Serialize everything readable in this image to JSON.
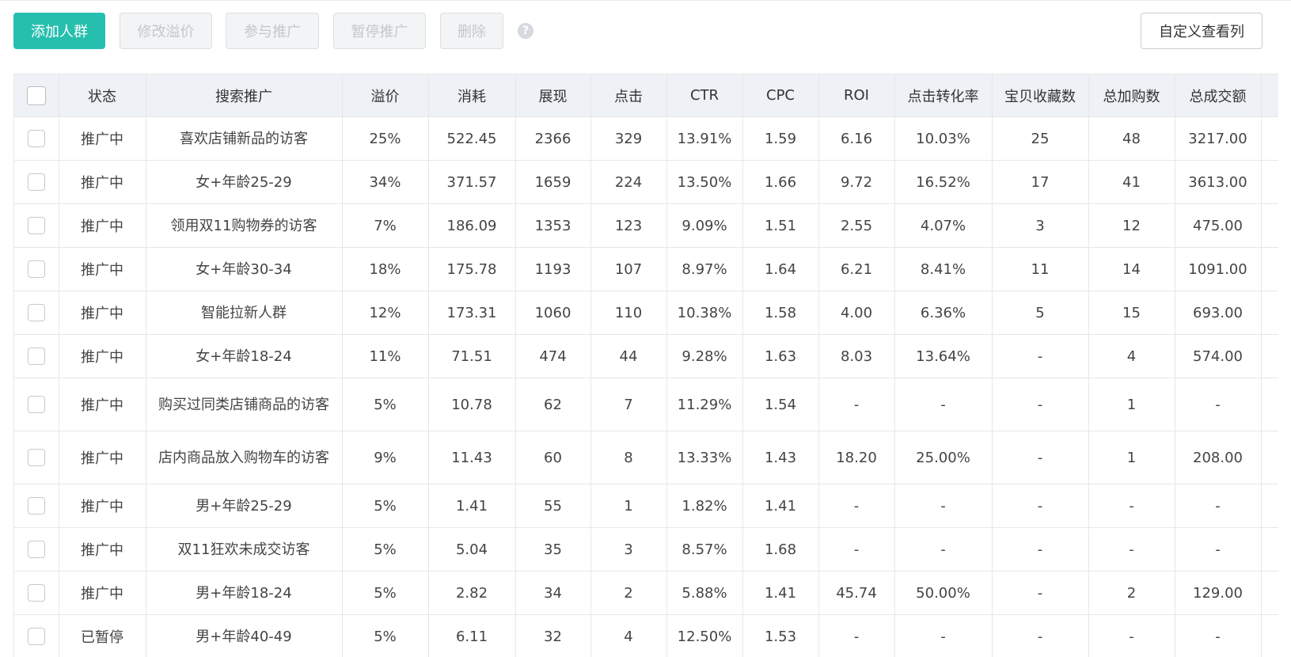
{
  "toolbar": {
    "add_label": "添加人群",
    "edit_premium_label": "修改溢价",
    "join_label": "参与推广",
    "pause_label": "暂停推广",
    "delete_label": "删除",
    "help_glyph": "?",
    "custom_columns_label": "自定义查看列"
  },
  "table": {
    "columns": [
      "状态",
      "搜索推广",
      "溢价",
      "消耗",
      "展现",
      "点击",
      "CTR",
      "CPC",
      "ROI",
      "点击转化率",
      "宝贝收藏数",
      "总加购数",
      "总成交额"
    ],
    "rows": [
      {
        "status": "推广中",
        "name": "喜欢店铺新品的访客",
        "premium": "25%",
        "cost": "522.45",
        "impressions": "2366",
        "clicks": "329",
        "ctr": "13.91%",
        "cpc": "1.59",
        "roi": "6.16",
        "cvr": "10.03%",
        "favorites": "25",
        "carts": "48",
        "gmv": "3217.00"
      },
      {
        "status": "推广中",
        "name": "女+年龄25-29",
        "premium": "34%",
        "cost": "371.57",
        "impressions": "1659",
        "clicks": "224",
        "ctr": "13.50%",
        "cpc": "1.66",
        "roi": "9.72",
        "cvr": "16.52%",
        "favorites": "17",
        "carts": "41",
        "gmv": "3613.00"
      },
      {
        "status": "推广中",
        "name": "领用双11购物券的访客",
        "premium": "7%",
        "cost": "186.09",
        "impressions": "1353",
        "clicks": "123",
        "ctr": "9.09%",
        "cpc": "1.51",
        "roi": "2.55",
        "cvr": "4.07%",
        "favorites": "3",
        "carts": "12",
        "gmv": "475.00"
      },
      {
        "status": "推广中",
        "name": "女+年龄30-34",
        "premium": "18%",
        "cost": "175.78",
        "impressions": "1193",
        "clicks": "107",
        "ctr": "8.97%",
        "cpc": "1.64",
        "roi": "6.21",
        "cvr": "8.41%",
        "favorites": "11",
        "carts": "14",
        "gmv": "1091.00"
      },
      {
        "status": "推广中",
        "name": "智能拉新人群",
        "premium": "12%",
        "cost": "173.31",
        "impressions": "1060",
        "clicks": "110",
        "ctr": "10.38%",
        "cpc": "1.58",
        "roi": "4.00",
        "cvr": "6.36%",
        "favorites": "5",
        "carts": "15",
        "gmv": "693.00"
      },
      {
        "status": "推广中",
        "name": "女+年龄18-24",
        "premium": "11%",
        "cost": "71.51",
        "impressions": "474",
        "clicks": "44",
        "ctr": "9.28%",
        "cpc": "1.63",
        "roi": "8.03",
        "cvr": "13.64%",
        "favorites": "-",
        "carts": "4",
        "gmv": "574.00"
      },
      {
        "status": "推广中",
        "name": "购买过同类店铺商品的访客",
        "premium": "5%",
        "cost": "10.78",
        "impressions": "62",
        "clicks": "7",
        "ctr": "11.29%",
        "cpc": "1.54",
        "roi": "-",
        "cvr": "-",
        "favorites": "-",
        "carts": "1",
        "gmv": "-"
      },
      {
        "status": "推广中",
        "name": "店内商品放入购物车的访客",
        "premium": "9%",
        "cost": "11.43",
        "impressions": "60",
        "clicks": "8",
        "ctr": "13.33%",
        "cpc": "1.43",
        "roi": "18.20",
        "cvr": "25.00%",
        "favorites": "-",
        "carts": "1",
        "gmv": "208.00"
      },
      {
        "status": "推广中",
        "name": "男+年龄25-29",
        "premium": "5%",
        "cost": "1.41",
        "impressions": "55",
        "clicks": "1",
        "ctr": "1.82%",
        "cpc": "1.41",
        "roi": "-",
        "cvr": "-",
        "favorites": "-",
        "carts": "-",
        "gmv": "-"
      },
      {
        "status": "推广中",
        "name": "双11狂欢未成交访客",
        "premium": "5%",
        "cost": "5.04",
        "impressions": "35",
        "clicks": "3",
        "ctr": "8.57%",
        "cpc": "1.68",
        "roi": "-",
        "cvr": "-",
        "favorites": "-",
        "carts": "-",
        "gmv": "-"
      },
      {
        "status": "推广中",
        "name": "男+年龄18-24",
        "premium": "5%",
        "cost": "2.82",
        "impressions": "34",
        "clicks": "2",
        "ctr": "5.88%",
        "cpc": "1.41",
        "roi": "45.74",
        "cvr": "50.00%",
        "favorites": "-",
        "carts": "2",
        "gmv": "129.00"
      },
      {
        "status": "已暂停",
        "name": "男+年龄40-49",
        "premium": "5%",
        "cost": "6.11",
        "impressions": "32",
        "clicks": "4",
        "ctr": "12.50%",
        "cpc": "1.53",
        "roi": "-",
        "cvr": "-",
        "favorites": "-",
        "carts": "-",
        "gmv": "-"
      }
    ]
  },
  "colors": {
    "primary": "#26bfae",
    "header_bg": "#eef1f5",
    "border": "#e4e7ea",
    "disabled_text": "#c3c7cc"
  }
}
